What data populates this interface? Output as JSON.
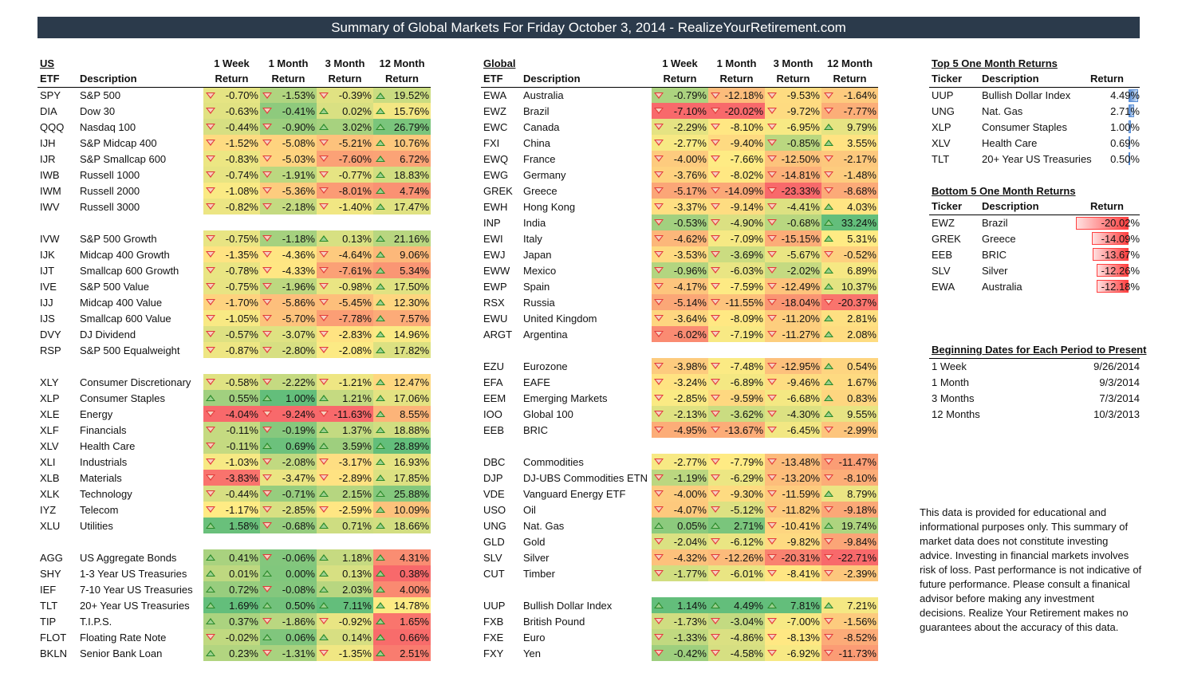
{
  "title": "Summary of Global Markets For Friday October 3, 2014 - RealizeYourRetirement.com",
  "us": {
    "heading": "US",
    "headers": {
      "ticker": "ETF",
      "desc": "Description",
      "c1a": "1 Week",
      "c1b": "Return",
      "c2a": "1 Month",
      "c2b": "Return",
      "c3a": "3 Month",
      "c3b": "Return",
      "c4a": "12 Month",
      "c4b": "Return"
    },
    "rows": [
      {
        "t": "SPY",
        "d": "S&P 500",
        "v": [
          "-0.70%",
          "-1.53%",
          "-0.39%",
          "19.52%"
        ]
      },
      {
        "t": "DIA",
        "d": "Dow 30",
        "v": [
          "-0.63%",
          "-0.41%",
          "0.02%",
          "15.76%"
        ]
      },
      {
        "t": "QQQ",
        "d": "Nasdaq 100",
        "v": [
          "-0.44%",
          "-0.90%",
          "3.02%",
          "26.79%"
        ]
      },
      {
        "t": "IJH",
        "d": "S&P Midcap 400",
        "v": [
          "-1.52%",
          "-5.08%",
          "-5.21%",
          "10.76%"
        ]
      },
      {
        "t": "IJR",
        "d": "S&P Smallcap 600",
        "v": [
          "-0.83%",
          "-5.03%",
          "-7.60%",
          "6.72%"
        ]
      },
      {
        "t": "IWB",
        "d": "Russell 1000",
        "v": [
          "-0.74%",
          "-1.91%",
          "-0.77%",
          "18.83%"
        ]
      },
      {
        "t": "IWM",
        "d": "Russell 2000",
        "v": [
          "-1.08%",
          "-5.36%",
          "-8.01%",
          "4.74%"
        ]
      },
      {
        "t": "IWV",
        "d": "Russell 3000",
        "v": [
          "-0.82%",
          "-2.18%",
          "-1.40%",
          "17.47%"
        ]
      },
      null,
      {
        "t": "IVW",
        "d": "S&P 500 Growth",
        "v": [
          "-0.75%",
          "-1.18%",
          "0.13%",
          "21.16%"
        ]
      },
      {
        "t": "IJK",
        "d": "Midcap 400 Growth",
        "v": [
          "-1.35%",
          "-4.36%",
          "-4.64%",
          "9.06%"
        ]
      },
      {
        "t": "IJT",
        "d": "Smallcap 600 Growth",
        "v": [
          "-0.78%",
          "-4.33%",
          "-7.61%",
          "5.34%"
        ]
      },
      {
        "t": "IVE",
        "d": "S&P 500 Value",
        "v": [
          "-0.75%",
          "-1.96%",
          "-0.98%",
          "17.50%"
        ]
      },
      {
        "t": "IJJ",
        "d": "Midcap 400 Value",
        "v": [
          "-1.70%",
          "-5.86%",
          "-5.45%",
          "12.30%"
        ]
      },
      {
        "t": "IJS",
        "d": "Smallcap 600 Value",
        "v": [
          "-1.05%",
          "-5.70%",
          "-7.78%",
          "7.57%"
        ]
      },
      {
        "t": "DVY",
        "d": "DJ Dividend",
        "v": [
          "-0.57%",
          "-3.07%",
          "-2.83%",
          "14.96%"
        ]
      },
      {
        "t": "RSP",
        "d": "S&P 500 Equalweight",
        "v": [
          "-0.87%",
          "-2.80%",
          "-2.08%",
          "17.82%"
        ]
      },
      null,
      {
        "t": "XLY",
        "d": "Consumer Discretionary",
        "v": [
          "-0.58%",
          "-2.22%",
          "-1.21%",
          "12.47%"
        ]
      },
      {
        "t": "XLP",
        "d": "Consumer Staples",
        "v": [
          "0.55%",
          "1.00%",
          "1.21%",
          "17.06%"
        ]
      },
      {
        "t": "XLE",
        "d": "Energy",
        "v": [
          "-4.04%",
          "-9.24%",
          "-11.63%",
          "8.55%"
        ]
      },
      {
        "t": "XLF",
        "d": "Financials",
        "v": [
          "-0.11%",
          "-0.19%",
          "1.37%",
          "18.88%"
        ]
      },
      {
        "t": "XLV",
        "d": "Health Care",
        "v": [
          "-0.11%",
          "0.69%",
          "3.59%",
          "28.89%"
        ]
      },
      {
        "t": "XLI",
        "d": "Industrials",
        "v": [
          "-1.03%",
          "-2.08%",
          "-3.17%",
          "16.93%"
        ]
      },
      {
        "t": "XLB",
        "d": "Materials",
        "v": [
          "-3.83%",
          "-3.47%",
          "-2.89%",
          "17.85%"
        ]
      },
      {
        "t": "XLK",
        "d": "Technology",
        "v": [
          "-0.44%",
          "-0.71%",
          "2.15%",
          "25.88%"
        ]
      },
      {
        "t": "IYZ",
        "d": "Telecom",
        "v": [
          "-1.17%",
          "-2.85%",
          "-2.59%",
          "10.09%"
        ]
      },
      {
        "t": "XLU",
        "d": "Utilities",
        "v": [
          "1.58%",
          "-0.68%",
          "0.71%",
          "18.66%"
        ]
      },
      null,
      {
        "t": "AGG",
        "d": "US Aggregate Bonds",
        "v": [
          "0.41%",
          "-0.06%",
          "1.18%",
          "4.31%"
        ]
      },
      {
        "t": "SHY",
        "d": "1-3 Year US Treasuries",
        "v": [
          "0.01%",
          "0.00%",
          "0.13%",
          "0.38%"
        ]
      },
      {
        "t": "IEF",
        "d": "7-10 Year US Treasuries",
        "v": [
          "0.72%",
          "-0.08%",
          "2.03%",
          "4.00%"
        ]
      },
      {
        "t": "TLT",
        "d": "20+ Year US Treasuries",
        "v": [
          "1.69%",
          "0.50%",
          "7.11%",
          "14.78%"
        ]
      },
      {
        "t": "TIP",
        "d": "T.I.P.S.",
        "v": [
          "0.37%",
          "-1.86%",
          "-0.92%",
          "1.65%"
        ]
      },
      {
        "t": "FLOT",
        "d": "Floating Rate Note",
        "v": [
          "-0.02%",
          "0.06%",
          "0.14%",
          "0.66%"
        ]
      },
      {
        "t": "BKLN",
        "d": "Senior Bank Loan",
        "v": [
          "0.23%",
          "-1.31%",
          "-1.35%",
          "2.51%"
        ]
      }
    ]
  },
  "global": {
    "heading": "Global",
    "headers": {
      "ticker": "ETF",
      "desc": "Description",
      "c1a": "1 Week",
      "c1b": "Return",
      "c2a": "1 Month",
      "c2b": "Return",
      "c3a": "3 Month",
      "c3b": "Return",
      "c4a": "12 Month",
      "c4b": "Return"
    },
    "rows": [
      {
        "t": "EWA",
        "d": "Australia",
        "v": [
          "-0.79%",
          "-12.18%",
          "-9.53%",
          "-1.64%"
        ]
      },
      {
        "t": "EWZ",
        "d": "Brazil",
        "v": [
          "-7.10%",
          "-20.02%",
          "-9.72%",
          "-7.77%"
        ]
      },
      {
        "t": "EWC",
        "d": "Canada",
        "v": [
          "-2.29%",
          "-8.10%",
          "-6.95%",
          "9.79%"
        ]
      },
      {
        "t": "FXI",
        "d": "China",
        "v": [
          "-2.77%",
          "-9.40%",
          "-0.85%",
          "3.55%"
        ]
      },
      {
        "t": "EWQ",
        "d": "France",
        "v": [
          "-4.00%",
          "-7.66%",
          "-12.50%",
          "-2.17%"
        ]
      },
      {
        "t": "EWG",
        "d": "Germany",
        "v": [
          "-3.76%",
          "-8.02%",
          "-14.81%",
          "-1.48%"
        ]
      },
      {
        "t": "GREK",
        "d": "Greece",
        "v": [
          "-5.17%",
          "-14.09%",
          "-23.33%",
          "-8.68%"
        ]
      },
      {
        "t": "EWH",
        "d": "Hong Kong",
        "v": [
          "-3.37%",
          "-9.14%",
          "-4.41%",
          "4.03%"
        ]
      },
      {
        "t": "INP",
        "d": "India",
        "v": [
          "-0.53%",
          "-4.90%",
          "-0.68%",
          "33.24%"
        ]
      },
      {
        "t": "EWI",
        "d": "Italy",
        "v": [
          "-4.62%",
          "-7.09%",
          "-15.15%",
          "5.31%"
        ]
      },
      {
        "t": "EWJ",
        "d": "Japan",
        "v": [
          "-3.53%",
          "-3.69%",
          "-5.67%",
          "-0.52%"
        ]
      },
      {
        "t": "EWW",
        "d": "Mexico",
        "v": [
          "-0.96%",
          "-6.03%",
          "-2.02%",
          "6.89%"
        ]
      },
      {
        "t": "EWP",
        "d": "Spain",
        "v": [
          "-4.17%",
          "-7.59%",
          "-12.49%",
          "10.37%"
        ]
      },
      {
        "t": "RSX",
        "d": "Russia",
        "v": [
          "-5.14%",
          "-11.55%",
          "-18.04%",
          "-20.37%"
        ]
      },
      {
        "t": "EWU",
        "d": "United Kingdom",
        "v": [
          "-3.64%",
          "-8.09%",
          "-11.20%",
          "2.81%"
        ]
      },
      {
        "t": "ARGT",
        "d": "Argentina",
        "v": [
          "-6.02%",
          "-7.19%",
          "-11.27%",
          "2.08%"
        ]
      },
      null,
      {
        "t": "EZU",
        "d": "Eurozone",
        "v": [
          "-3.98%",
          "-7.48%",
          "-12.95%",
          "0.54%"
        ]
      },
      {
        "t": "EFA",
        "d": "EAFE",
        "v": [
          "-3.24%",
          "-6.89%",
          "-9.46%",
          "1.67%"
        ]
      },
      {
        "t": "EEM",
        "d": "Emerging Markets",
        "v": [
          "-2.85%",
          "-9.59%",
          "-6.68%",
          "0.83%"
        ]
      },
      {
        "t": "IOO",
        "d": "Global 100",
        "v": [
          "-2.13%",
          "-3.62%",
          "-4.30%",
          "9.55%"
        ]
      },
      {
        "t": "EEB",
        "d": "BRIC",
        "v": [
          "-4.95%",
          "-13.67%",
          "-6.45%",
          "-2.99%"
        ]
      },
      null,
      {
        "t": "DBC",
        "d": "Commodities",
        "v": [
          "-2.77%",
          "-7.79%",
          "-13.48%",
          "-11.47%"
        ]
      },
      {
        "t": "DJP",
        "d": "DJ-UBS Commodities ETN",
        "v": [
          "-1.19%",
          "-6.29%",
          "-13.20%",
          "-8.10%"
        ]
      },
      {
        "t": "VDE",
        "d": "Vanguard Energy ETF",
        "v": [
          "-4.00%",
          "-9.30%",
          "-11.59%",
          "8.79%"
        ]
      },
      {
        "t": "USO",
        "d": "Oil",
        "v": [
          "-4.07%",
          "-5.12%",
          "-11.82%",
          "-9.18%"
        ]
      },
      {
        "t": "UNG",
        "d": "Nat. Gas",
        "v": [
          "0.05%",
          "2.71%",
          "-10.41%",
          "19.74%"
        ]
      },
      {
        "t": "GLD",
        "d": "Gold",
        "v": [
          "-2.04%",
          "-6.12%",
          "-9.82%",
          "-9.84%"
        ]
      },
      {
        "t": "SLV",
        "d": "Silver",
        "v": [
          "-4.32%",
          "-12.26%",
          "-20.31%",
          "-22.71%"
        ]
      },
      {
        "t": "CUT",
        "d": "Timber",
        "v": [
          "-1.77%",
          "-6.01%",
          "-8.41%",
          "-2.39%"
        ]
      },
      null,
      {
        "t": "UUP",
        "d": "Bullish Dollar Index",
        "v": [
          "1.14%",
          "4.49%",
          "7.81%",
          "7.21%"
        ]
      },
      {
        "t": "FXB",
        "d": "British Pound",
        "v": [
          "-1.73%",
          "-3.04%",
          "-7.00%",
          "-1.56%"
        ]
      },
      {
        "t": "FXE",
        "d": "Euro",
        "v": [
          "-1.33%",
          "-4.86%",
          "-8.13%",
          "-8.52%"
        ]
      },
      {
        "t": "FXY",
        "d": "Yen",
        "v": [
          "-0.42%",
          "-4.58%",
          "-6.92%",
          "-11.73%"
        ]
      }
    ]
  },
  "top5": {
    "title": "Top 5 One Month Returns",
    "headers": {
      "ticker": "Ticker",
      "desc": "Description",
      "ret": "Return"
    },
    "rows": [
      {
        "t": "UUP",
        "d": "Bullish Dollar Index",
        "v": "4.49%",
        "n": 4.49
      },
      {
        "t": "UNG",
        "d": "Nat. Gas",
        "v": "2.71%",
        "n": 2.71
      },
      {
        "t": "XLP",
        "d": "Consumer Staples",
        "v": "1.00%",
        "n": 1.0
      },
      {
        "t": "XLV",
        "d": "Health Care",
        "v": "0.69%",
        "n": 0.69
      },
      {
        "t": "TLT",
        "d": "20+ Year US Treasuries",
        "v": "0.50%",
        "n": 0.5
      }
    ]
  },
  "bottom5": {
    "title": "Bottom 5 One Month Returns",
    "headers": {
      "ticker": "Ticker",
      "desc": "Description",
      "ret": "Return"
    },
    "rows": [
      {
        "t": "EWZ",
        "d": "Brazil",
        "v": "-20.02%",
        "n": -20.02
      },
      {
        "t": "GREK",
        "d": "Greece",
        "v": "-14.09%",
        "n": -14.09
      },
      {
        "t": "EEB",
        "d": "BRIC",
        "v": "-13.67%",
        "n": -13.67
      },
      {
        "t": "SLV",
        "d": "Silver",
        "v": "-12.26%",
        "n": -12.26
      },
      {
        "t": "EWA",
        "d": "Australia",
        "v": "-12.18%",
        "n": -12.18
      }
    ]
  },
  "dates": {
    "title": "Beginning Dates for Each Period to Present",
    "rows": [
      {
        "p": "1 Week",
        "d": "9/26/2014"
      },
      {
        "p": "1 Month",
        "d": "9/3/2014"
      },
      {
        "p": "3 Months",
        "d": "7/3/2014"
      },
      {
        "p": "12 Months",
        "d": "10/3/2013"
      }
    ]
  },
  "disclaimer": "This data is provided for educational and informational purposes only. This summary of market data does not constitute investing advice. Investing in financial markets involves risk of loss.  Past performance is not indicative of future performance. Please consult a finanical advisor before making any investment decisions. Realize Your Retirement makes no guarantees about the accuracy of this data.",
  "colors": {
    "banner": "#2b3a4b",
    "green": "#63be7b",
    "yellow": "#ffeb84",
    "red": "#f8696b",
    "bar_blue": "#5b8fd6",
    "bar_red": "#ff4040"
  }
}
